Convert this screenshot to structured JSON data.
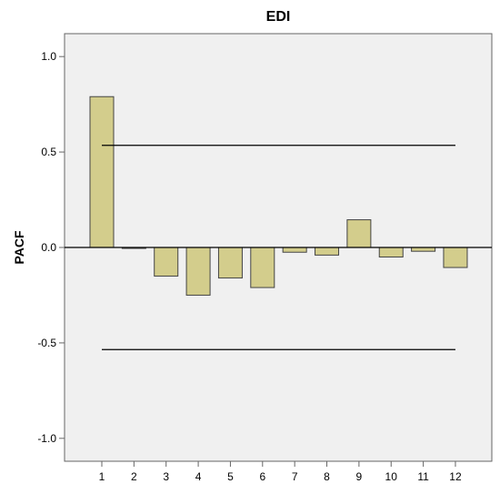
{
  "chart_data": {
    "type": "bar",
    "title": "EDI",
    "xlabel": "",
    "ylabel": "PACF",
    "categories": [
      "1",
      "2",
      "3",
      "4",
      "5",
      "6",
      "7",
      "8",
      "9",
      "10",
      "11",
      "12"
    ],
    "values": [
      0.79,
      -0.005,
      -0.15,
      -0.25,
      -0.16,
      -0.21,
      -0.025,
      -0.04,
      0.145,
      -0.05,
      -0.02,
      -0.105
    ],
    "yticks": [
      {
        "value": 1.0,
        "label": "1.0"
      },
      {
        "value": 0.5,
        "label": "0.5"
      },
      {
        "value": 0.0,
        "label": "0.0"
      },
      {
        "value": -0.5,
        "label": "-0.5"
      },
      {
        "value": -1.0,
        "label": "-1.0"
      }
    ],
    "ylim": [
      -1.12,
      1.12
    ],
    "confidence_limits": [
      0.535,
      -0.535
    ],
    "grid": false,
    "colors": {
      "plot_background": "#f0f0f0",
      "bar_fill": "#d3cd8c",
      "bar_stroke": "#444444",
      "line": "#000000",
      "axis": "#666666"
    }
  }
}
